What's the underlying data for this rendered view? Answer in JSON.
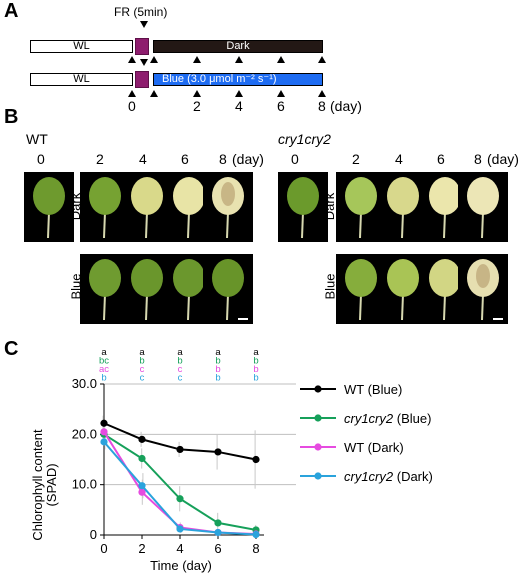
{
  "panels": {
    "a": "A",
    "b": "B",
    "c": "C"
  },
  "panel_a": {
    "fr_label": "FR (5min)",
    "row1": {
      "wl": "WL",
      "treatment": "Dark"
    },
    "row2": {
      "wl": "WL",
      "treatment": "Blue (3.0 μmol m⁻² s⁻¹)"
    },
    "days": [
      "0",
      "2",
      "4",
      "6",
      "8"
    ],
    "day_unit": "(day)"
  },
  "panel_b": {
    "wt_label": "WT",
    "mut_label": "cry1cry2",
    "days": [
      "0",
      "2",
      "4",
      "6",
      "8"
    ],
    "day_unit": "(day)",
    "row_dark": "Dark",
    "row_blue": "Blue"
  },
  "colors": {
    "wt_blue": "#000000",
    "mut_blue": "#16a05a",
    "wt_dark": "#e64be0",
    "mut_dark": "#2aa3dc",
    "leaf_green": "#6e9a2e",
    "leaf_yellow": "#e6e29a"
  },
  "chart_data": {
    "type": "line",
    "title": "",
    "xlabel": "Time (day)",
    "ylabel": "Chlorophyll content (SPAD)",
    "ylabel_line1": "Chlorophyll content",
    "ylabel_line2": "(SPAD)",
    "x": [
      0,
      2,
      4,
      6,
      8
    ],
    "xlim": [
      0,
      8
    ],
    "ylim": [
      0,
      30
    ],
    "y_ticks": [
      0,
      10,
      20,
      30
    ],
    "y_tick_labels": [
      "0",
      "10.0",
      "20.0",
      "30.0"
    ],
    "grid": true,
    "legend_position": "right",
    "series": [
      {
        "name": "WT (Blue)",
        "italic": false,
        "color": "#000000",
        "values": [
          22.2,
          19.0,
          17.0,
          16.5,
          15.0
        ],
        "err": [
          1.5,
          1.5,
          1.5,
          3.5,
          5.8
        ]
      },
      {
        "name": "cry1cry2 (Blue)",
        "italic": true,
        "color": "#16a05a",
        "values": [
          20.0,
          15.2,
          7.2,
          2.4,
          1.0
        ],
        "err": [
          1.5,
          2.0,
          2.5,
          2.0,
          1.0
        ]
      },
      {
        "name": "WT (Dark)",
        "italic": false,
        "color": "#e64be0",
        "values": [
          20.5,
          8.5,
          1.5,
          0.5,
          0.2
        ],
        "err": [
          1.5,
          2.5,
          1.0,
          0.5,
          0.2
        ]
      },
      {
        "name": "cry1cry2 (Dark)",
        "italic": true,
        "color": "#2aa3dc",
        "values": [
          18.5,
          9.8,
          1.2,
          0.5,
          0.1
        ],
        "err": [
          1.5,
          2.5,
          0.8,
          0.4,
          0.2
        ]
      }
    ],
    "legend_labels": [
      {
        "main": "WT",
        "suffix": " (Blue)",
        "italic": false
      },
      {
        "main": "cry1cry2",
        "suffix": " (Blue)",
        "italic": true
      },
      {
        "main": "WT",
        "suffix": " (Dark)",
        "italic": false
      },
      {
        "main": "cry1cry2",
        "suffix": " (Dark)",
        "italic": true
      }
    ],
    "significance_letters": [
      [
        "a",
        "bc",
        "ac",
        "b"
      ],
      [
        "a",
        "b",
        "c",
        "c"
      ],
      [
        "a",
        "b",
        "c",
        "c"
      ],
      [
        "a",
        "b",
        "b",
        "b"
      ],
      [
        "a",
        "b",
        "b",
        "b"
      ]
    ]
  }
}
